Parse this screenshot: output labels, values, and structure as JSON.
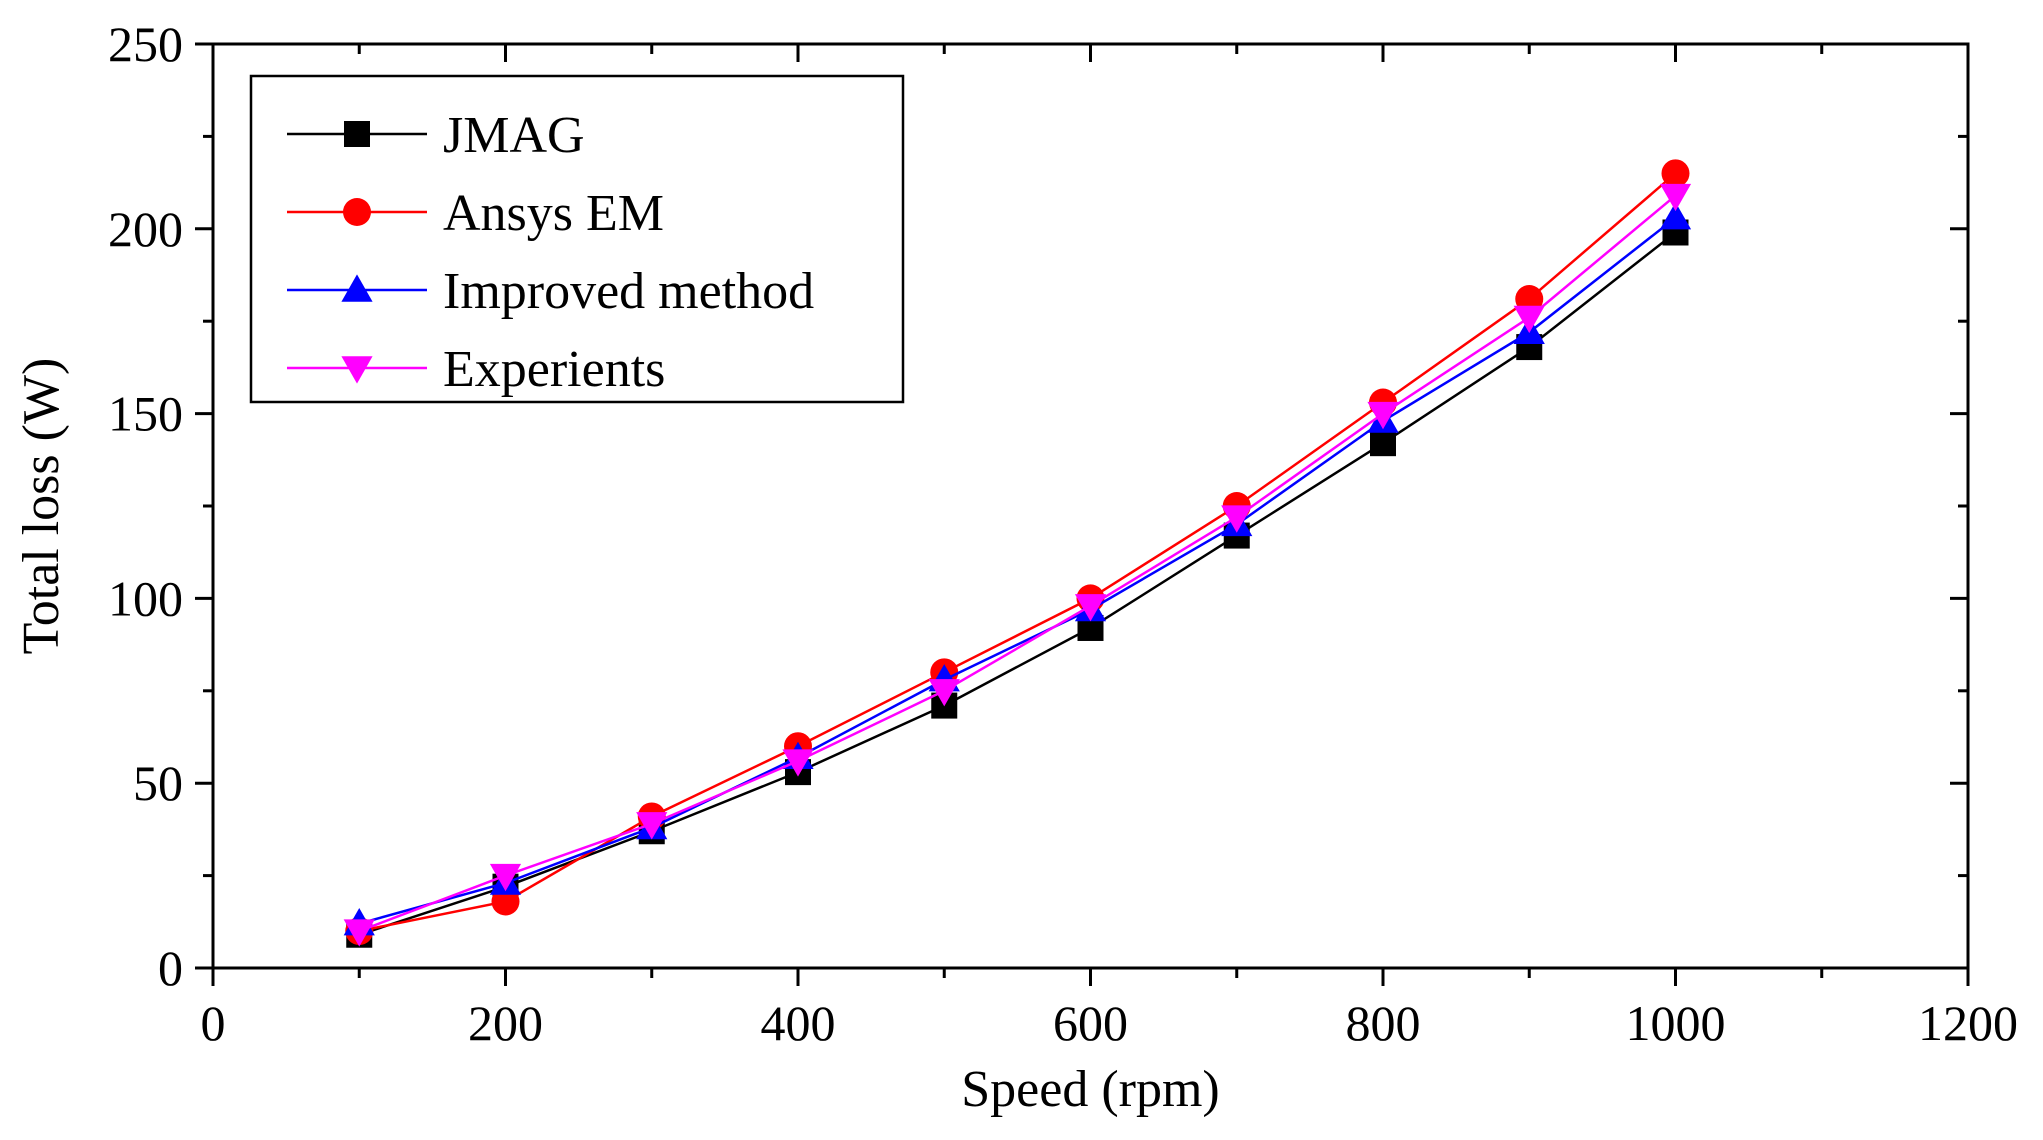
{
  "chart_data": {
    "type": "line",
    "xlabel": "Speed (rpm)",
    "ylabel": "Total loss (W)",
    "xlim": [
      0,
      1200
    ],
    "ylim": [
      0,
      250
    ],
    "xticks": [
      0,
      200,
      400,
      600,
      800,
      1000,
      1200
    ],
    "yticks": [
      0,
      50,
      100,
      150,
      200,
      250
    ],
    "grid": false,
    "legend_position": "top-left",
    "x": [
      100,
      200,
      300,
      400,
      500,
      600,
      700,
      800,
      900,
      1000
    ],
    "series": [
      {
        "name": "JMAG",
        "color": "#000000",
        "marker": "square",
        "values": [
          9,
          22,
          37,
          53,
          71,
          92,
          117,
          142,
          168,
          199
        ]
      },
      {
        "name": "Ansys EM",
        "color": "#ff0000",
        "marker": "circle",
        "values": [
          10,
          18,
          41,
          60,
          80,
          100,
          125,
          153,
          181,
          215
        ]
      },
      {
        "name": "Improved method",
        "color": "#0000ff",
        "marker": "triangle-up",
        "values": [
          12,
          23,
          38,
          57,
          78,
          97,
          120,
          148,
          172,
          203
        ]
      },
      {
        "name": "Experients",
        "color": "#ff00ff",
        "marker": "triangle-down",
        "values": [
          10,
          25,
          39,
          56,
          75,
          98,
          122,
          150,
          176,
          209
        ]
      }
    ]
  }
}
